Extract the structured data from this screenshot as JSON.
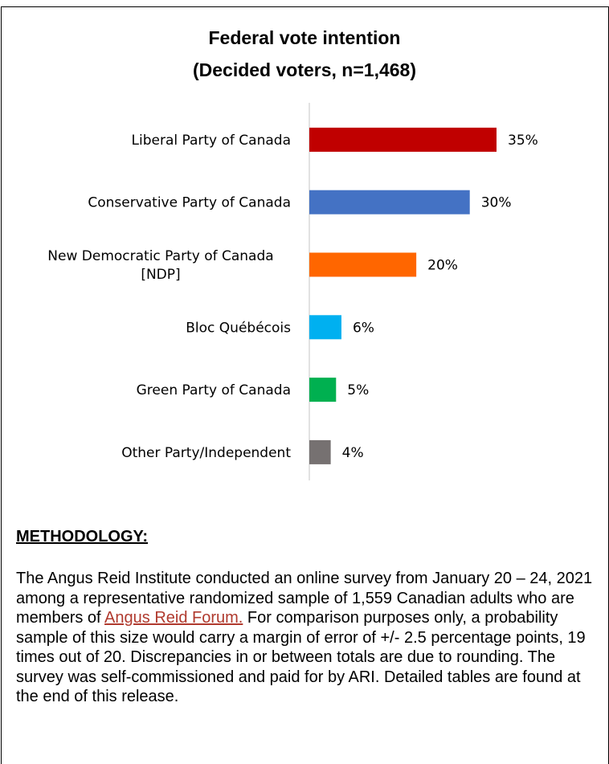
{
  "title_line1": "Federal vote intention",
  "title_line2": "(Decided voters, n=1,468)",
  "chart_data": {
    "type": "bar",
    "orientation": "horizontal",
    "title": "Federal vote intention (Decided voters, n=1,468)",
    "categories": [
      [
        "Liberal Party of Canada"
      ],
      [
        "Conservative Party of Canada"
      ],
      [
        "New Democratic Party of Canada",
        "[NDP]"
      ],
      [
        "Bloc Québécois"
      ],
      [
        "Green Party of Canada"
      ],
      [
        "Other Party/Independent"
      ]
    ],
    "values": [
      35,
      30,
      20,
      6,
      5,
      4
    ],
    "value_labels": [
      "35%",
      "30%",
      "20%",
      "6%",
      "5%",
      "4%"
    ],
    "colors": [
      "#c00000",
      "#4472c4",
      "#ff6600",
      "#00b0f0",
      "#00b050",
      "#767171"
    ],
    "xlim": [
      0,
      40
    ],
    "grid": false
  },
  "methodology": {
    "heading": "METHODOLOGY:",
    "text_before_link": "The Angus Reid Institute conducted an online survey from January 20 – 24, 2021 among a representative randomized sample of 1,559 Canadian adults who are members of ",
    "link_text": "Angus Reid Forum.",
    "text_after_link": " For comparison purposes only, a probability sample of this size would carry a margin of error of +/- 2.5 percentage points, 19 times out of 20. Discrepancies in or between totals are due to rounding. The survey was self-commissioned and paid for by ARI. Detailed tables are found at the end of this release."
  }
}
